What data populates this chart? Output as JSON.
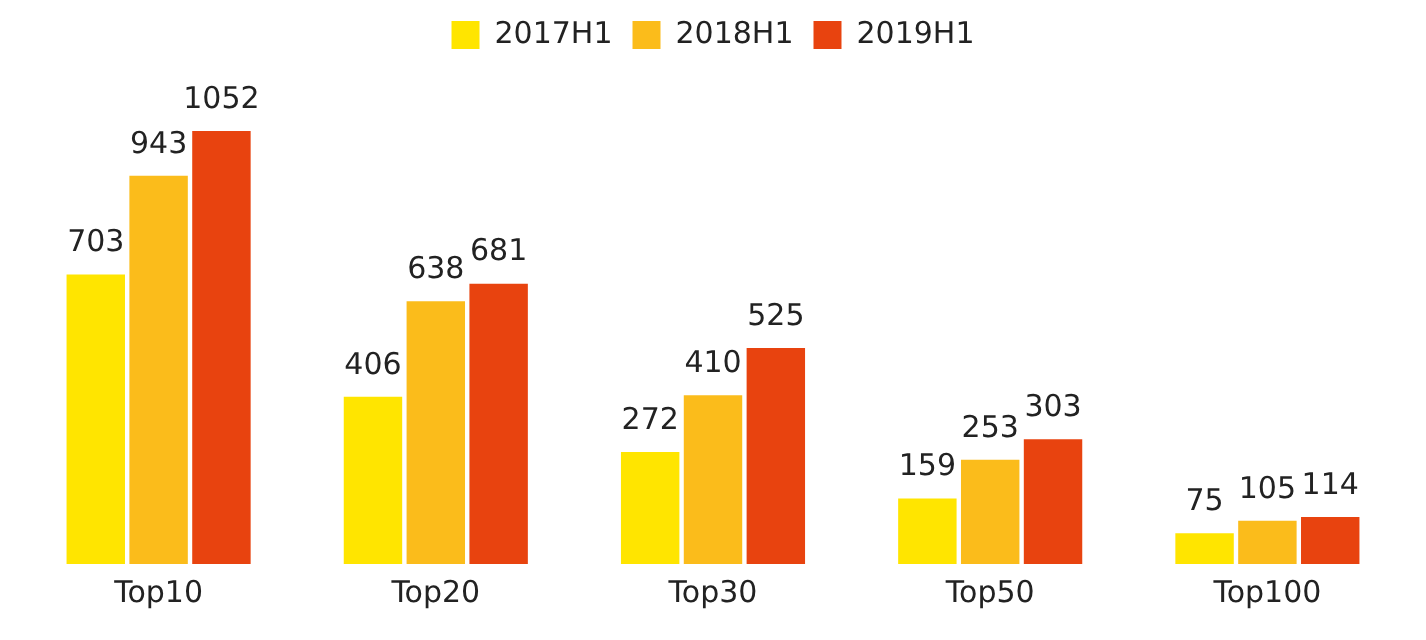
{
  "chart_data": {
    "type": "bar",
    "categories": [
      "Top10",
      "Top20",
      "Top30",
      "Top50",
      "Top100"
    ],
    "series": [
      {
        "name": "2017H1",
        "color": "#ffe500",
        "values": [
          703,
          406,
          272,
          159,
          75
        ]
      },
      {
        "name": "2018H1",
        "color": "#fbbc1b",
        "values": [
          943,
          638,
          410,
          253,
          105
        ]
      },
      {
        "name": "2019H1",
        "color": "#e8430f",
        "values": [
          1052,
          681,
          525,
          303,
          114
        ]
      }
    ],
    "data_labels": true,
    "legend": "top",
    "grid": false
  }
}
